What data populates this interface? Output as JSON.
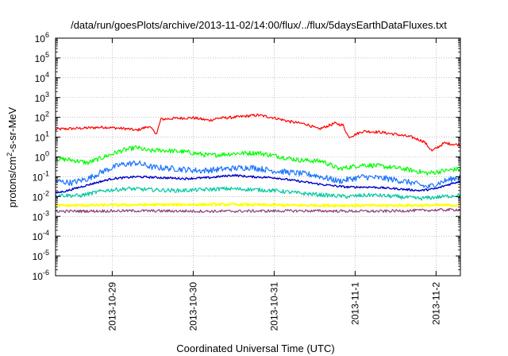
{
  "chart_data": {
    "type": "line",
    "title": "/data/run/goesPlots/archive/2013-11-02/14:00/flux/../flux/5daysEarthDataFluxes.txt",
    "xlabel": "Coordinated Universal Time (UTC)",
    "ylabel_prefix": "protons/cm",
    "ylabel_sup": "2",
    "ylabel_suffix": "-s-sr-MeV",
    "yscale": "log",
    "ylim": [
      1e-06,
      1000000.0
    ],
    "xlim": [
      0,
      5
    ],
    "grid": true,
    "x_ticks": [
      {
        "value": 0.7,
        "label": "2013-10-29"
      },
      {
        "value": 1.7,
        "label": "2013-10-30"
      },
      {
        "value": 2.7,
        "label": "2013-10-31"
      },
      {
        "value": 3.7,
        "label": "2013-11-1"
      },
      {
        "value": 4.7,
        "label": "2013-11-2"
      }
    ],
    "y_ticks": [
      {
        "value": 1e-06,
        "base": "10",
        "exp": "-6"
      },
      {
        "value": 1e-05,
        "base": "10",
        "exp": "-5"
      },
      {
        "value": 0.0001,
        "base": "10",
        "exp": "-4"
      },
      {
        "value": 0.001,
        "base": "10",
        "exp": "-3"
      },
      {
        "value": 0.01,
        "base": "10",
        "exp": "-2"
      },
      {
        "value": 0.1,
        "base": "10",
        "exp": "-1"
      },
      {
        "value": 1,
        "base": "10",
        "exp": "0"
      },
      {
        "value": 10,
        "base": "10",
        "exp": "1"
      },
      {
        "value": 100,
        "base": "10",
        "exp": "2"
      },
      {
        "value": 1000,
        "base": "10",
        "exp": "3"
      },
      {
        "value": 10000,
        "base": "10",
        "exp": "4"
      },
      {
        "value": 100000,
        "base": "10",
        "exp": "5"
      },
      {
        "value": 1000000,
        "base": "10",
        "exp": "6"
      }
    ],
    "series": [
      {
        "color": "#ff0000",
        "noise": 0.07,
        "width": 1.2,
        "points": [
          [
            0,
            25
          ],
          [
            0.3,
            28
          ],
          [
            0.6,
            32
          ],
          [
            0.9,
            26
          ],
          [
            1.0,
            22
          ],
          [
            1.15,
            35
          ],
          [
            1.25,
            15
          ],
          [
            1.3,
            80
          ],
          [
            1.5,
            90
          ],
          [
            1.7,
            95
          ],
          [
            1.9,
            70
          ],
          [
            2.0,
            90
          ],
          [
            2.2,
            100
          ],
          [
            2.4,
            120
          ],
          [
            2.5,
            130
          ],
          [
            2.7,
            95
          ],
          [
            2.9,
            60
          ],
          [
            3.1,
            45
          ],
          [
            3.25,
            25
          ],
          [
            3.45,
            50
          ],
          [
            3.55,
            40
          ],
          [
            3.62,
            10
          ],
          [
            3.8,
            20
          ],
          [
            4.0,
            18
          ],
          [
            4.2,
            14
          ],
          [
            4.4,
            10
          ],
          [
            4.55,
            6
          ],
          [
            4.65,
            2
          ],
          [
            4.8,
            5
          ],
          [
            5.0,
            4
          ]
        ]
      },
      {
        "color": "#00ff00",
        "noise": 0.12,
        "width": 1.2,
        "points": [
          [
            0,
            0.8
          ],
          [
            0.2,
            0.7
          ],
          [
            0.4,
            0.5
          ],
          [
            0.6,
            1.0
          ],
          [
            0.8,
            2.0
          ],
          [
            1.0,
            3.0
          ],
          [
            1.15,
            2.0
          ],
          [
            1.3,
            2.2
          ],
          [
            1.6,
            1.8
          ],
          [
            1.9,
            1.2
          ],
          [
            2.2,
            1.5
          ],
          [
            2.5,
            1.6
          ],
          [
            2.8,
            1.0
          ],
          [
            3.0,
            0.7
          ],
          [
            3.3,
            0.6
          ],
          [
            3.5,
            0.25
          ],
          [
            3.8,
            0.4
          ],
          [
            4.0,
            0.35
          ],
          [
            4.3,
            0.25
          ],
          [
            4.6,
            0.15
          ],
          [
            4.8,
            0.2
          ],
          [
            5.0,
            0.25
          ]
        ]
      },
      {
        "color": "#1a75ff",
        "noise": 0.15,
        "width": 1.2,
        "points": [
          [
            0,
            0.06
          ],
          [
            0.2,
            0.05
          ],
          [
            0.4,
            0.08
          ],
          [
            0.6,
            0.2
          ],
          [
            0.8,
            0.4
          ],
          [
            1.0,
            0.5
          ],
          [
            1.2,
            0.3
          ],
          [
            1.5,
            0.25
          ],
          [
            1.8,
            0.2
          ],
          [
            2.1,
            0.25
          ],
          [
            2.4,
            0.3
          ],
          [
            2.7,
            0.2
          ],
          [
            3.0,
            0.15
          ],
          [
            3.2,
            0.12
          ],
          [
            3.5,
            0.06
          ],
          [
            3.8,
            0.1
          ],
          [
            4.1,
            0.08
          ],
          [
            4.4,
            0.05
          ],
          [
            4.6,
            0.03
          ],
          [
            4.8,
            0.06
          ],
          [
            5.0,
            0.1
          ]
        ]
      },
      {
        "color": "#0000cc",
        "noise": 0.05,
        "width": 1.4,
        "points": [
          [
            0,
            0.015
          ],
          [
            0.15,
            0.02
          ],
          [
            0.3,
            0.03
          ],
          [
            0.5,
            0.05
          ],
          [
            0.7,
            0.08
          ],
          [
            1.0,
            0.1
          ],
          [
            1.3,
            0.09
          ],
          [
            1.6,
            0.08
          ],
          [
            1.9,
            0.09
          ],
          [
            2.2,
            0.12
          ],
          [
            2.4,
            0.1
          ],
          [
            2.7,
            0.09
          ],
          [
            3.0,
            0.06
          ],
          [
            3.3,
            0.04
          ],
          [
            3.6,
            0.03
          ],
          [
            3.9,
            0.03
          ],
          [
            4.2,
            0.025
          ],
          [
            4.5,
            0.02
          ],
          [
            4.7,
            0.025
          ],
          [
            4.85,
            0.04
          ],
          [
            5.0,
            0.06
          ]
        ]
      },
      {
        "color": "#00c8a0",
        "noise": 0.1,
        "width": 1.2,
        "points": [
          [
            0,
            0.012
          ],
          [
            0.3,
            0.011
          ],
          [
            0.6,
            0.02
          ],
          [
            0.9,
            0.025
          ],
          [
            1.2,
            0.022
          ],
          [
            1.5,
            0.02
          ],
          [
            1.8,
            0.022
          ],
          [
            2.1,
            0.025
          ],
          [
            2.4,
            0.023
          ],
          [
            2.7,
            0.02
          ],
          [
            3.0,
            0.015
          ],
          [
            3.3,
            0.012
          ],
          [
            3.6,
            0.01
          ],
          [
            3.9,
            0.012
          ],
          [
            4.2,
            0.01
          ],
          [
            4.5,
            0.008
          ],
          [
            4.8,
            0.01
          ],
          [
            5.0,
            0.012
          ]
        ]
      },
      {
        "color": "#ffff00",
        "noise": 0.06,
        "width": 2.0,
        "points": [
          [
            0,
            0.0035
          ],
          [
            1.0,
            0.0038
          ],
          [
            2.0,
            0.004
          ],
          [
            3.0,
            0.0036
          ],
          [
            4.0,
            0.0035
          ],
          [
            5.0,
            0.0037
          ]
        ]
      },
      {
        "color": "#8e3d7f",
        "noise": 0.07,
        "width": 1.2,
        "points": [
          [
            0,
            0.0018
          ],
          [
            1.0,
            0.0019
          ],
          [
            2.0,
            0.0018
          ],
          [
            3.0,
            0.0019
          ],
          [
            4.0,
            0.0018
          ],
          [
            5.0,
            0.0022
          ]
        ]
      }
    ]
  }
}
